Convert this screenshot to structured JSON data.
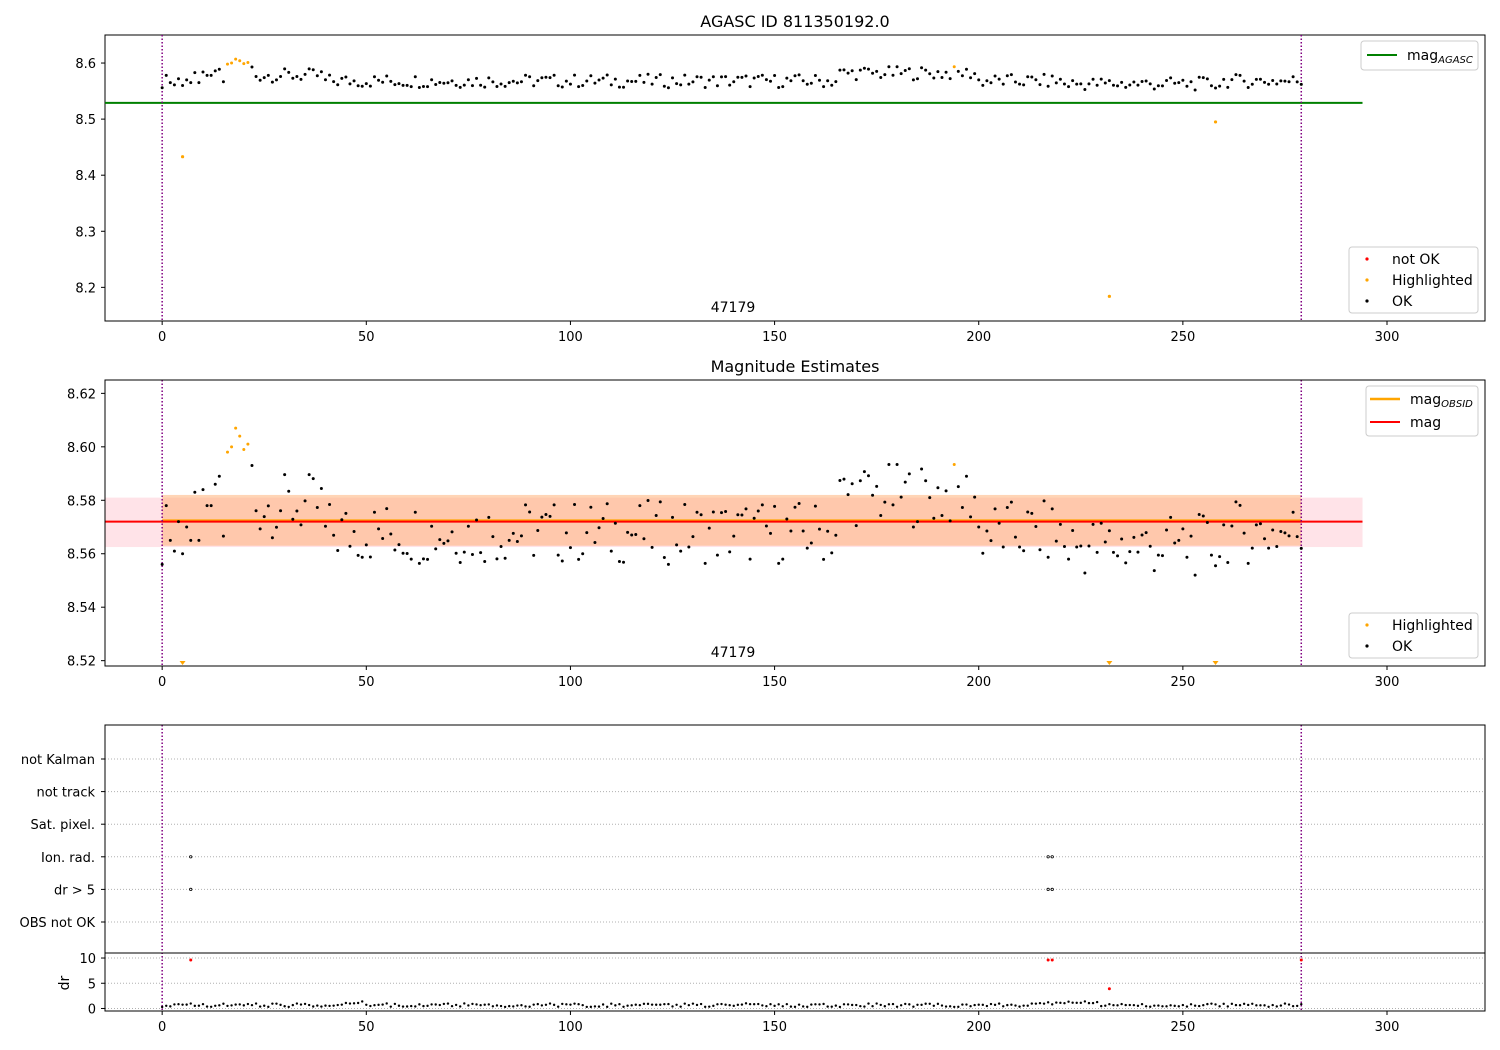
{
  "chart_data": [
    {
      "type": "scatter",
      "title": "AGASC ID 811350192.0",
      "xlim": [
        -14,
        324
      ],
      "ylim": [
        8.14,
        8.65
      ],
      "xticks": [
        0,
        50,
        100,
        150,
        200,
        250,
        300
      ],
      "xtick_labels": [
        "0",
        "50",
        "100",
        "150",
        "200",
        "250",
        "300"
      ],
      "yticks": [
        8.2,
        8.3,
        8.4,
        8.5,
        8.6
      ],
      "ytick_labels": [
        "8.2",
        "8.3",
        "8.4",
        "8.5",
        "8.6"
      ],
      "vlines": [
        0,
        279
      ],
      "obsid_label": "47179",
      "obsid_x": 140,
      "lines": [
        {
          "name": "mag",
          "name_sub": "AGASC",
          "color": "#008000",
          "x": [
            -14,
            294
          ],
          "y": [
            8.529,
            8.529
          ]
        }
      ],
      "highlighted_points": [
        [
          5,
          8.433
        ],
        [
          232,
          8.184
        ],
        [
          258,
          8.495
        ]
      ],
      "series_style": {
        "ok": "#000000",
        "highlighted": "#ffa500",
        "not_ok": "#ff0000"
      },
      "legend_lines": {
        "label": "mag",
        "sub": "AGASC"
      },
      "legend_points": [
        {
          "label": "not OK",
          "color": "#ff0000"
        },
        {
          "label": "Highlighted",
          "color": "#ffa500"
        },
        {
          "label": "OK",
          "color": "#000000"
        }
      ],
      "legend_placement": "upper-right and lower-right"
    },
    {
      "type": "scatter",
      "title": "Magnitude Estimates",
      "xlim": [
        -14,
        324
      ],
      "ylim": [
        8.518,
        8.625
      ],
      "xticks": [
        0,
        50,
        100,
        150,
        200,
        250,
        300
      ],
      "xtick_labels": [
        "0",
        "50",
        "100",
        "150",
        "200",
        "250",
        "300"
      ],
      "yticks": [
        8.52,
        8.54,
        8.56,
        8.58,
        8.6,
        8.62
      ],
      "ytick_labels": [
        "8.52",
        "8.54",
        "8.56",
        "8.58",
        "8.60",
        "8.62"
      ],
      "vlines": [
        0,
        279
      ],
      "obsid_label": "47179",
      "obsid_x": 140,
      "bands": [
        {
          "name": "mag",
          "color": "#ffc0cb",
          "x": [
            -14,
            294
          ],
          "y": [
            8.5625,
            8.581
          ]
        },
        {
          "name": "mag_OBSID",
          "color": "#ffb27a",
          "x": [
            0,
            279
          ],
          "y": [
            8.563,
            8.582
          ]
        }
      ],
      "lines": [
        {
          "name": "mag",
          "sub": "OBSID",
          "color": "#ffa500",
          "x": [
            0,
            279
          ],
          "y": [
            8.5725,
            8.5725
          ]
        },
        {
          "name": "mag",
          "color": "#ff0000",
          "x": [
            -14,
            294
          ],
          "y": [
            8.572,
            8.572
          ]
        }
      ],
      "clipped_low_markers_x": [
        5,
        232,
        258
      ],
      "legend_lines": [
        {
          "label": "mag",
          "sub": "OBSID",
          "color": "#ffa500"
        },
        {
          "label": "mag",
          "color": "#ff0000"
        }
      ],
      "legend_points": [
        {
          "label": "Highlighted",
          "color": "#ffa500"
        },
        {
          "label": "OK",
          "color": "#000000"
        }
      ]
    },
    {
      "type": "scatter",
      "title": "",
      "xlim": [
        -14,
        324
      ],
      "categories": [
        "not Kalman",
        "not track",
        "Sat. pixel.",
        "Ion. rad.",
        "dr > 5",
        "OBS not OK"
      ],
      "flag_points": {
        "Ion. rad.": [
          7,
          217,
          218
        ],
        "dr > 5": [
          7,
          217,
          218
        ]
      },
      "dr_yticks": [
        0,
        5,
        10
      ],
      "dr_ytick_labels": [
        "0",
        "5",
        "10"
      ],
      "dr_ylim": [
        -0.5,
        10.6
      ],
      "dr_ylabel": "dr",
      "xticks": [
        0,
        50,
        100,
        150,
        200,
        250,
        300
      ],
      "xtick_labels": [
        "0",
        "50",
        "100",
        "150",
        "200",
        "250",
        "300"
      ],
      "vlines": [
        0,
        279
      ],
      "dr_red_points": [
        [
          7,
          9.6
        ],
        [
          217,
          9.6
        ],
        [
          218,
          9.6
        ],
        [
          232,
          3.9
        ],
        [
          279,
          9.6
        ]
      ]
    }
  ]
}
